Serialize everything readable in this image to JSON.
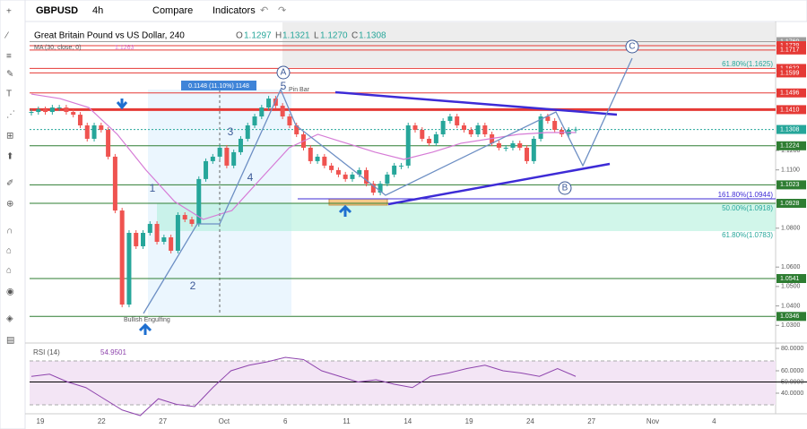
{
  "toolbar": {
    "symbol": "GBPUSD",
    "interval": "4h",
    "compare": "Compare",
    "indicators": "Indicators"
  },
  "legend": {
    "title": "Great Britain Pound vs US Dollar, 240",
    "o_label": "O",
    "open": "1.1297",
    "h_label": "H",
    "high": "1.1321",
    "l_label": "L",
    "low": "1.1270",
    "c_label": "C",
    "close": "1.1308",
    "ma_label": "MA (30, close, 0)",
    "ma_value": "1.1263"
  },
  "chart_data": {
    "type": "candlestick",
    "ylim": [
      1.0223,
      1.1859
    ],
    "yticks": [
      {
        "value": 1.12,
        "label": "1.1200"
      },
      {
        "value": 1.11,
        "label": "1.1100"
      },
      {
        "value": 1.08,
        "label": "1.0800"
      },
      {
        "value": 1.06,
        "label": "1.0600"
      },
      {
        "value": 1.05,
        "label": "1.0500"
      },
      {
        "value": 1.04,
        "label": "1.0400"
      },
      {
        "value": 1.03,
        "label": "1.0300"
      }
    ],
    "levels": [
      {
        "value": 1.176,
        "label": "1.1760",
        "color": "#9e9e9e"
      },
      {
        "value": 1.1739,
        "label": "1.1739",
        "color": "#e53935"
      },
      {
        "value": 1.1717,
        "label": "1.1717",
        "color": "#e53935"
      },
      {
        "value": 1.1622,
        "label": "1.1622",
        "color": "#e53935"
      },
      {
        "value": 1.1599,
        "label": "1.1599",
        "color": "#e53935"
      },
      {
        "value": 1.1496,
        "label": "1.1496",
        "color": "#e53935"
      },
      {
        "value": 1.141,
        "label": "1.1410",
        "color": "#e53935"
      },
      {
        "value": 1.1308,
        "label": "1.1308",
        "color": "#26a69a"
      },
      {
        "value": 1.1224,
        "label": "1.1224",
        "color": "#2e7d32"
      },
      {
        "value": 1.1023,
        "label": "1.1023",
        "color": "#2e7d32"
      },
      {
        "value": 1.0928,
        "label": "1.0928",
        "color": "#2e7d32"
      },
      {
        "value": 1.0541,
        "label": "1.0541",
        "color": "#2e7d32"
      },
      {
        "value": 1.0346,
        "label": "1.0346",
        "color": "#2e7d32"
      }
    ],
    "close": [
      1.1398,
      1.1412,
      1.1398,
      1.1421,
      1.1421,
      1.1398,
      1.1384,
      1.1329,
      1.126,
      1.1329,
      1.1306,
      1.1168,
      1.0891,
      1.0407,
      1.0776,
      1.0707,
      1.0776,
      1.0822,
      1.073,
      1.0753,
      1.0684,
      1.0868,
      1.0845,
      1.0822,
      1.1053,
      1.1145,
      1.1168,
      1.1214,
      1.1122,
      1.1191,
      1.126,
      1.1329,
      1.1375,
      1.1421,
      1.1467,
      1.143,
      1.1375,
      1.1329,
      1.1283,
      1.1214,
      1.1145,
      1.1168,
      1.1122,
      1.1099,
      1.1076,
      1.1053,
      1.1076,
      1.1099,
      1.1029,
      1.0983,
      1.1029,
      1.1076,
      1.1122,
      1.1122,
      1.1329,
      1.1306,
      1.126,
      1.1237,
      1.1283,
      1.1352,
      1.1375,
      1.1329,
      1.1306,
      1.1283,
      1.1329,
      1.1283,
      1.1237,
      1.1214,
      1.1214,
      1.1237,
      1.1214,
      1.1145,
      1.126,
      1.1375,
      1.1352,
      1.1306,
      1.1283,
      1.1306,
      1.1308
    ],
    "ma": [
      1.149,
      1.1467,
      1.1421,
      1.1283,
      1.1099,
      1.0937,
      1.0845,
      1.0891,
      1.1053,
      1.1214,
      1.1283,
      1.1237,
      1.1191,
      1.1154,
      1.1191,
      1.1237,
      1.126,
      1.1283,
      1.1292,
      1.1292
    ],
    "up_color": "#26a69a",
    "down_color": "#ef5350",
    "ma_color": "#d67bd6",
    "annotations": {
      "fib1": "61.80%(1.1625)",
      "fib2": "161.80%(1.0944)",
      "fib3": "50.00%(1.0918)",
      "fib4": "61.80%(1.0783)",
      "a": "A",
      "b": "B",
      "c": "C",
      "w1": "1",
      "w2": "2",
      "w3": "3",
      "w4": "4",
      "w5": "5",
      "pin_bar": "Pin Bar",
      "engulfing": "Bullish Engulfing",
      "measure": "0.1148 (11.10%) 1148"
    },
    "dates": [
      "19",
      "22",
      "27",
      "Oct",
      "6",
      "11",
      "14",
      "19",
      "24",
      "27",
      "Nov",
      "4"
    ],
    "rsi": {
      "title": "RSI (14)",
      "value_label": "54.9501",
      "ylim": [
        23.2,
        84.8
      ],
      "yticks": [
        {
          "value": 80,
          "label": "80.0000"
        },
        {
          "value": 60,
          "label": "60.0000"
        },
        {
          "value": 50,
          "label": "50.0000"
        },
        {
          "value": 40,
          "label": "40.0000"
        }
      ],
      "values": [
        55,
        57,
        50,
        45,
        35,
        25,
        20,
        35,
        30,
        28,
        45,
        60,
        65,
        68,
        72,
        70,
        60,
        55,
        50,
        52,
        48,
        45,
        55,
        58,
        62,
        65,
        60,
        58,
        55,
        62,
        55
      ],
      "color": "#8e44ad"
    }
  }
}
